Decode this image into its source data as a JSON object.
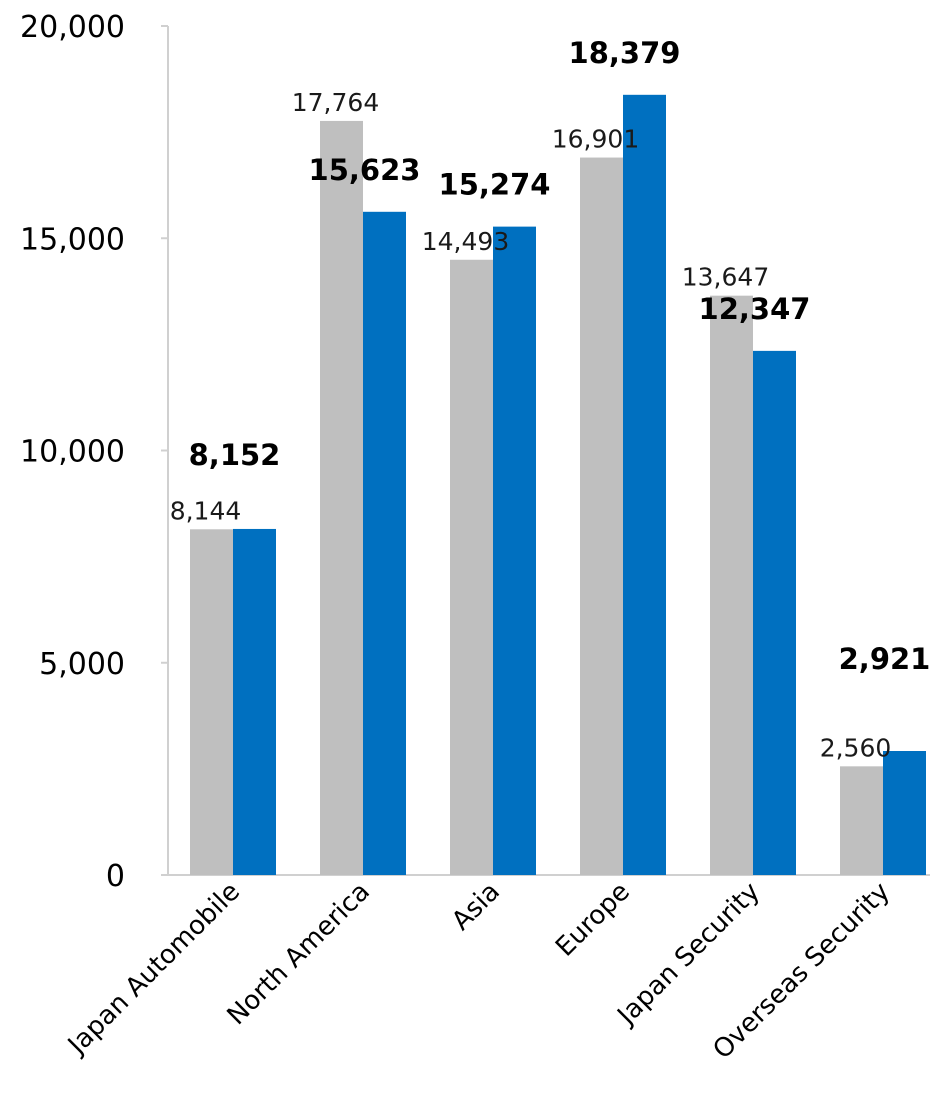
{
  "chart_data": {
    "type": "bar",
    "categories": [
      "Japan Automobile",
      "North America",
      "Asia",
      "Europe",
      "Japan Security",
      "Overseas Security"
    ],
    "series": [
      {
        "values": [
          8144,
          17764,
          14493,
          16901,
          13647,
          2560
        ],
        "color": "#bfbfbf"
      },
      {
        "values": [
          8152,
          15623,
          15274,
          18379,
          12347,
          2921
        ],
        "color": "#0070c0"
      }
    ],
    "value_labels": [
      [
        "8,144",
        "17,764",
        "14,493",
        "16,901",
        "13,647",
        "2,560"
      ],
      [
        "8,152",
        "15,623",
        "15,274",
        "18,379",
        "12,347",
        "2,921"
      ]
    ],
    "y_ticks": [
      0,
      5000,
      10000,
      15000,
      20000
    ],
    "y_tick_labels": [
      "0",
      "5,000",
      "10,000",
      "15,000",
      "20,000"
    ],
    "ylim": [
      0,
      20000
    ],
    "grid": false,
    "legend": "none"
  }
}
